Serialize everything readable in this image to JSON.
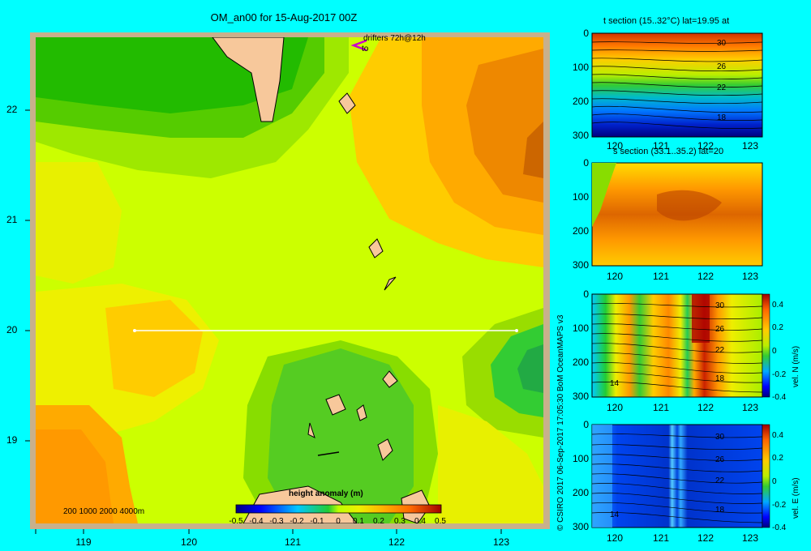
{
  "map": {
    "title": "OM_an00 for 15-Aug-2017 00Z",
    "drifters_label": "drifters 72h@12h",
    "drifters_to": "to",
    "depth_legend": "200  1000  2000  4000m",
    "lat_ticks": [
      "22",
      "21",
      "20",
      "19"
    ],
    "lon_ticks": [
      "119",
      "120",
      "121",
      "122",
      "123"
    ],
    "colorbar": {
      "title": "height anomaly  (m)",
      "ticks": [
        "-0.5",
        "-0.4",
        "-0.3",
        "-0.2",
        "-0.1",
        "0",
        "0.1",
        "0.2",
        "0.3",
        "0.4",
        "0.5"
      ]
    }
  },
  "credit": "© CSIRO 2017   06-Sep-2017 17:05:30 BoM OceanMAPS v3",
  "panels": [
    {
      "title": "t section (15..32°C) lat=19.95 at",
      "y_ticks": [
        "0",
        "100",
        "200",
        "300"
      ],
      "x_ticks": [
        "120",
        "121",
        "122",
        "123"
      ],
      "contour_labels": [
        "30",
        "26",
        "22",
        "18"
      ]
    },
    {
      "title": "s section (33.1..35.2) lat=20",
      "y_ticks": [
        "0",
        "100",
        "200",
        "300"
      ],
      "x_ticks": [
        "120",
        "121",
        "122",
        "123"
      ]
    },
    {
      "title": "",
      "y_ticks": [
        "0",
        "100",
        "200",
        "300"
      ],
      "x_ticks": [
        "120",
        "121",
        "122",
        "123"
      ],
      "contour_labels": [
        "30",
        "26",
        "22",
        "18",
        "14"
      ],
      "cbar_label": "vel. N  (m/s)",
      "cbar_ticks": [
        "0.4",
        "0.2",
        "0",
        "-0.2",
        "-0.4"
      ]
    },
    {
      "title": "",
      "y_ticks": [
        "0",
        "100",
        "200",
        "300"
      ],
      "x_ticks": [
        "120",
        "121",
        "122",
        "123"
      ],
      "contour_labels": [
        "30",
        "26",
        "22",
        "18",
        "14"
      ],
      "cbar_label": "vel. E  (m/s)",
      "cbar_ticks": [
        "0.4",
        "0.2",
        "0",
        "-0.2",
        "-0.4"
      ]
    }
  ]
}
